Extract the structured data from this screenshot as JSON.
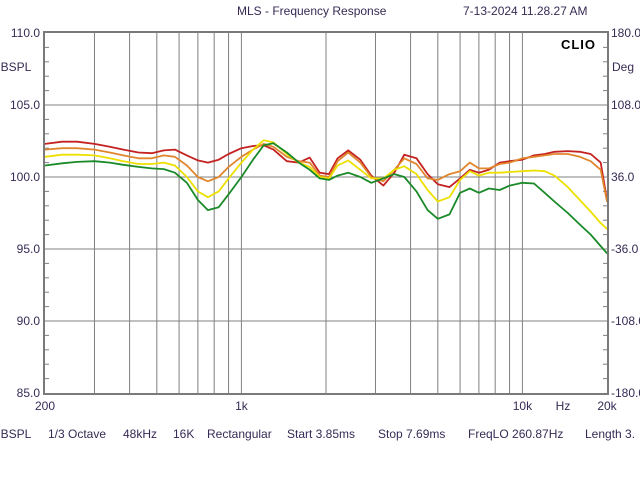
{
  "header": {
    "title": "MLS - Frequency Response",
    "timestamp": "7-13-2024 11.28.27 AM"
  },
  "plot": {
    "watermark": "CLIO"
  },
  "axes": {
    "left": {
      "unit": "dBSPL",
      "labels": [
        "110.0",
        "105.0",
        "100.0",
        "95.0",
        "90.0",
        "85.0"
      ]
    },
    "right": {
      "unit": "Deg",
      "labels": [
        "180.0",
        "108.0",
        "36.0",
        "-36.0",
        "-108.0",
        "-180.0"
      ]
    },
    "bottom": {
      "unit": "Hz",
      "ticks": [
        {
          "label": "200",
          "f": 200
        },
        {
          "label": "1k",
          "f": 1000
        },
        {
          "label": "10k",
          "f": 10000
        },
        {
          "label": "20k",
          "f": 20000
        }
      ]
    }
  },
  "status_bar": {
    "items": [
      "dBSPL",
      "1/3 Octave",
      "48kHz",
      "16K",
      "Rectangular",
      "Start 3.85ms",
      "Stop 7.69ms",
      "FreqLO 260.87Hz",
      "Length 3."
    ]
  },
  "colors": {
    "text": "#372a55",
    "grid": "#808080",
    "border": "#7a7a7a",
    "watermark": "#000000"
  },
  "chart_data": {
    "type": "line",
    "title": "MLS - Frequency Response",
    "x_scale": "log",
    "xlim": [
      200,
      20000
    ],
    "ylim_left": [
      85,
      110
    ],
    "ylim_right": [
      -180,
      180
    ],
    "xlabel": "Hz",
    "ylabel_left": "dBSPL",
    "ylabel_right": "Deg",
    "grid": true,
    "legend": "none",
    "y_major_step": 5,
    "x_gridlines": [
      300,
      400,
      500,
      600,
      700,
      800,
      900,
      1000,
      2000,
      3000,
      4000,
      5000,
      6000,
      7000,
      8000,
      9000,
      10000
    ],
    "series": [
      {
        "name": "curve-red",
        "color": "#c42220",
        "points": [
          [
            200,
            102.3
          ],
          [
            230,
            102.45
          ],
          [
            260,
            102.45
          ],
          [
            300,
            102.3
          ],
          [
            340,
            102.1
          ],
          [
            380,
            101.9
          ],
          [
            430,
            101.7
          ],
          [
            480,
            101.65
          ],
          [
            530,
            101.85
          ],
          [
            580,
            101.9
          ],
          [
            640,
            101.5
          ],
          [
            700,
            101.15
          ],
          [
            760,
            101.0
          ],
          [
            830,
            101.2
          ],
          [
            900,
            101.6
          ],
          [
            1000,
            102.0
          ],
          [
            1100,
            102.15
          ],
          [
            1200,
            102.2
          ],
          [
            1300,
            101.9
          ],
          [
            1450,
            101.1
          ],
          [
            1600,
            101.0
          ],
          [
            1750,
            101.35
          ],
          [
            1900,
            100.3
          ],
          [
            2050,
            100.2
          ],
          [
            2200,
            101.3
          ],
          [
            2400,
            101.85
          ],
          [
            2650,
            101.2
          ],
          [
            2900,
            100.1
          ],
          [
            3200,
            99.4
          ],
          [
            3500,
            100.3
          ],
          [
            3800,
            101.55
          ],
          [
            4200,
            101.3
          ],
          [
            4600,
            100.2
          ],
          [
            5000,
            99.5
          ],
          [
            5500,
            99.3
          ],
          [
            6000,
            99.9
          ],
          [
            6500,
            100.5
          ],
          [
            7000,
            100.3
          ],
          [
            7600,
            100.5
          ],
          [
            8300,
            101.0
          ],
          [
            9000,
            101.1
          ],
          [
            10000,
            101.2
          ],
          [
            11000,
            101.5
          ],
          [
            12000,
            101.6
          ],
          [
            13000,
            101.75
          ],
          [
            14500,
            101.8
          ],
          [
            16000,
            101.75
          ],
          [
            17500,
            101.6
          ],
          [
            19000,
            101.0
          ],
          [
            20000,
            98.4
          ]
        ]
      },
      {
        "name": "curve-orange",
        "color": "#e0862c",
        "points": [
          [
            200,
            101.9
          ],
          [
            230,
            102.0
          ],
          [
            260,
            102.0
          ],
          [
            300,
            101.9
          ],
          [
            340,
            101.7
          ],
          [
            380,
            101.5
          ],
          [
            430,
            101.3
          ],
          [
            480,
            101.3
          ],
          [
            530,
            101.5
          ],
          [
            580,
            101.4
          ],
          [
            640,
            100.8
          ],
          [
            700,
            100.0
          ],
          [
            760,
            99.7
          ],
          [
            830,
            100.0
          ],
          [
            900,
            100.7
          ],
          [
            1000,
            101.4
          ],
          [
            1100,
            101.9
          ],
          [
            1200,
            102.3
          ],
          [
            1300,
            102.1
          ],
          [
            1450,
            101.4
          ],
          [
            1600,
            101.1
          ],
          [
            1750,
            101.0
          ],
          [
            1900,
            100.1
          ],
          [
            2050,
            100.0
          ],
          [
            2200,
            101.1
          ],
          [
            2400,
            101.7
          ],
          [
            2650,
            101.0
          ],
          [
            2900,
            100.0
          ],
          [
            3200,
            99.7
          ],
          [
            3500,
            100.5
          ],
          [
            3800,
            101.3
          ],
          [
            4200,
            100.9
          ],
          [
            4600,
            99.9
          ],
          [
            5000,
            99.8
          ],
          [
            5500,
            100.2
          ],
          [
            6000,
            100.4
          ],
          [
            6500,
            101.0
          ],
          [
            7000,
            100.6
          ],
          [
            7600,
            100.6
          ],
          [
            8300,
            100.9
          ],
          [
            9000,
            101.0
          ],
          [
            10000,
            101.3
          ],
          [
            11000,
            101.4
          ],
          [
            12000,
            101.5
          ],
          [
            13000,
            101.6
          ],
          [
            14500,
            101.6
          ],
          [
            16000,
            101.4
          ],
          [
            17500,
            101.1
          ],
          [
            19000,
            100.5
          ],
          [
            20000,
            98.3
          ]
        ]
      },
      {
        "name": "curve-yellow",
        "color": "#ede000",
        "points": [
          [
            200,
            101.4
          ],
          [
            230,
            101.55
          ],
          [
            260,
            101.55
          ],
          [
            300,
            101.5
          ],
          [
            340,
            101.3
          ],
          [
            380,
            101.1
          ],
          [
            430,
            100.9
          ],
          [
            480,
            100.9
          ],
          [
            530,
            101.0
          ],
          [
            580,
            100.8
          ],
          [
            640,
            100.0
          ],
          [
            700,
            99.0
          ],
          [
            760,
            98.6
          ],
          [
            830,
            99.0
          ],
          [
            900,
            99.9
          ],
          [
            1000,
            101.0
          ],
          [
            1100,
            101.9
          ],
          [
            1200,
            102.55
          ],
          [
            1300,
            102.4
          ],
          [
            1450,
            101.6
          ],
          [
            1600,
            101.0
          ],
          [
            1750,
            100.7
          ],
          [
            1900,
            100.0
          ],
          [
            2050,
            99.9
          ],
          [
            2200,
            100.8
          ],
          [
            2400,
            101.15
          ],
          [
            2650,
            100.5
          ],
          [
            2900,
            99.9
          ],
          [
            3200,
            99.9
          ],
          [
            3500,
            100.5
          ],
          [
            3800,
            100.75
          ],
          [
            4200,
            100.2
          ],
          [
            4600,
            99.1
          ],
          [
            5000,
            98.3
          ],
          [
            5500,
            98.6
          ],
          [
            6000,
            99.8
          ],
          [
            6500,
            100.4
          ],
          [
            7000,
            100.1
          ],
          [
            7600,
            100.3
          ],
          [
            8300,
            100.3
          ],
          [
            9000,
            100.35
          ],
          [
            10000,
            100.4
          ],
          [
            11000,
            100.45
          ],
          [
            12000,
            100.4
          ],
          [
            13000,
            100.1
          ],
          [
            14500,
            99.3
          ],
          [
            16000,
            98.4
          ],
          [
            17500,
            97.6
          ],
          [
            19000,
            96.8
          ],
          [
            20000,
            96.4
          ]
        ]
      },
      {
        "name": "curve-green",
        "color": "#1a8a28",
        "points": [
          [
            200,
            100.8
          ],
          [
            230,
            100.95
          ],
          [
            260,
            101.05
          ],
          [
            300,
            101.1
          ],
          [
            340,
            101.0
          ],
          [
            380,
            100.85
          ],
          [
            430,
            100.7
          ],
          [
            480,
            100.6
          ],
          [
            530,
            100.55
          ],
          [
            580,
            100.3
          ],
          [
            640,
            99.6
          ],
          [
            700,
            98.4
          ],
          [
            760,
            97.7
          ],
          [
            830,
            97.9
          ],
          [
            900,
            98.8
          ],
          [
            1000,
            100.0
          ],
          [
            1100,
            101.2
          ],
          [
            1200,
            102.2
          ],
          [
            1300,
            102.35
          ],
          [
            1450,
            101.7
          ],
          [
            1600,
            101.0
          ],
          [
            1750,
            100.5
          ],
          [
            1900,
            99.9
          ],
          [
            2050,
            99.8
          ],
          [
            2200,
            100.1
          ],
          [
            2400,
            100.3
          ],
          [
            2650,
            100.0
          ],
          [
            2900,
            99.6
          ],
          [
            3200,
            99.9
          ],
          [
            3500,
            100.2
          ],
          [
            3800,
            100.0
          ],
          [
            4200,
            99.0
          ],
          [
            4600,
            97.7
          ],
          [
            5000,
            97.1
          ],
          [
            5500,
            97.4
          ],
          [
            6000,
            98.9
          ],
          [
            6500,
            99.2
          ],
          [
            7000,
            98.9
          ],
          [
            7600,
            99.2
          ],
          [
            8300,
            99.1
          ],
          [
            9000,
            99.4
          ],
          [
            10000,
            99.6
          ],
          [
            11000,
            99.55
          ],
          [
            12000,
            98.9
          ],
          [
            13000,
            98.3
          ],
          [
            14500,
            97.5
          ],
          [
            16000,
            96.7
          ],
          [
            17500,
            96.0
          ],
          [
            19000,
            95.2
          ],
          [
            20000,
            94.7
          ]
        ]
      }
    ]
  }
}
